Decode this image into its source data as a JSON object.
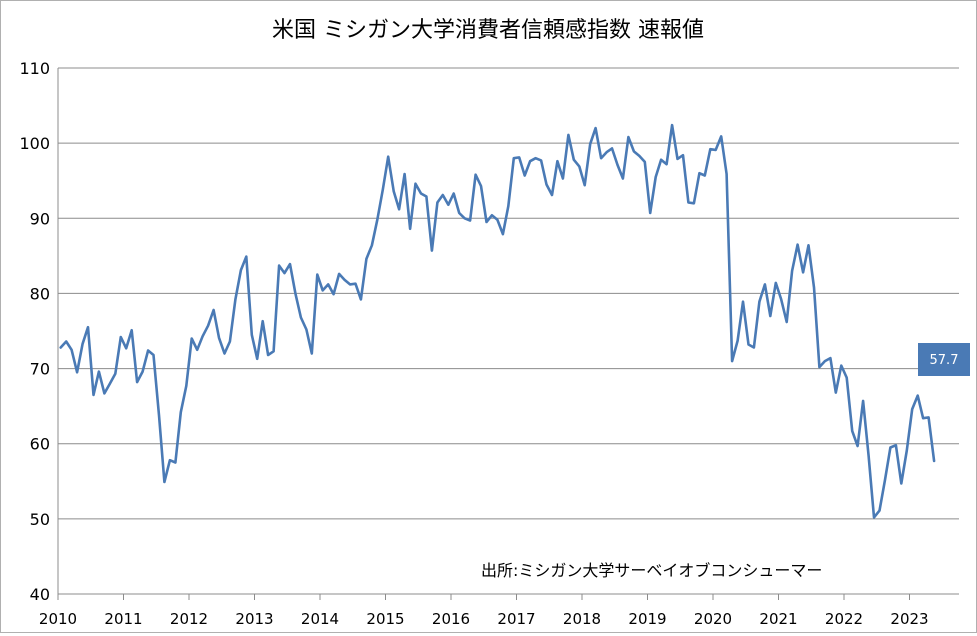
{
  "chart_data": {
    "type": "line",
    "title": "米国 ミシガン大学消費者信頼感指数 速報値",
    "source_note": "出所:ミシガン大学サーベイオブコンシューマー",
    "xlabel": "",
    "ylabel": "",
    "ylim": [
      40,
      110
    ],
    "yticks": [
      40,
      50,
      60,
      70,
      80,
      90,
      100,
      110
    ],
    "xlim": [
      2010,
      2024
    ],
    "xticks": [
      "2010",
      "2011",
      "2012",
      "2013",
      "2014",
      "2015",
      "2016",
      "2017",
      "2018",
      "2019",
      "2020",
      "2021",
      "2022",
      "2023"
    ],
    "grid": "horizontal",
    "legend": "none",
    "line_color": "#4a7ab5",
    "last_value_label": "57.7",
    "x_start": "2010-01",
    "x_step": "monthly",
    "values": [
      72.8,
      73.6,
      72.5,
      69.5,
      73.3,
      75.5,
      66.5,
      69.6,
      66.7,
      68.0,
      69.3,
      74.2,
      72.7,
      75.1,
      68.2,
      69.6,
      72.4,
      71.8,
      63.8,
      54.9,
      57.8,
      57.5,
      64.2,
      67.7,
      74.0,
      72.5,
      74.3,
      75.7,
      77.8,
      74.1,
      72.0,
      73.6,
      79.2,
      83.1,
      84.9,
      74.5,
      71.3,
      76.3,
      71.8,
      72.3,
      83.7,
      82.7,
      83.9,
      80.0,
      76.8,
      75.2,
      72.0,
      82.5,
      80.4,
      81.2,
      79.9,
      82.6,
      81.8,
      81.2,
      81.3,
      79.2,
      84.6,
      86.4,
      89.8,
      93.8,
      98.2,
      93.6,
      91.2,
      95.9,
      88.6,
      94.6,
      93.3,
      92.9,
      85.7,
      92.1,
      93.1,
      91.8,
      93.3,
      90.7,
      90.0,
      89.7,
      95.8,
      94.3,
      89.5,
      90.4,
      89.8,
      87.9,
      91.6,
      98.0,
      98.1,
      95.7,
      97.6,
      98.0,
      97.7,
      94.5,
      93.1,
      97.6,
      95.3,
      101.1,
      97.8,
      96.9,
      94.4,
      99.9,
      102.0,
      98.0,
      98.8,
      99.3,
      97.1,
      95.3,
      100.8,
      98.9,
      98.3,
      97.5,
      90.7,
      95.5,
      97.8,
      97.2,
      102.4,
      97.9,
      98.4,
      92.1,
      92.0,
      96.0,
      95.7,
      99.2,
      99.1,
      100.9,
      95.9,
      71.0,
      73.7,
      78.9,
      73.2,
      72.8,
      78.9,
      81.2,
      77.0,
      81.4,
      79.2,
      76.2,
      83.0,
      86.5,
      82.8,
      86.4,
      80.8,
      70.2,
      71.0,
      71.4,
      66.8,
      70.4,
      68.8,
      61.7,
      59.7,
      65.7,
      58.4,
      50.2,
      51.1,
      55.1,
      59.5,
      59.8,
      54.7,
      59.1,
      64.6,
      66.4,
      63.4,
      63.5,
      57.7
    ]
  }
}
